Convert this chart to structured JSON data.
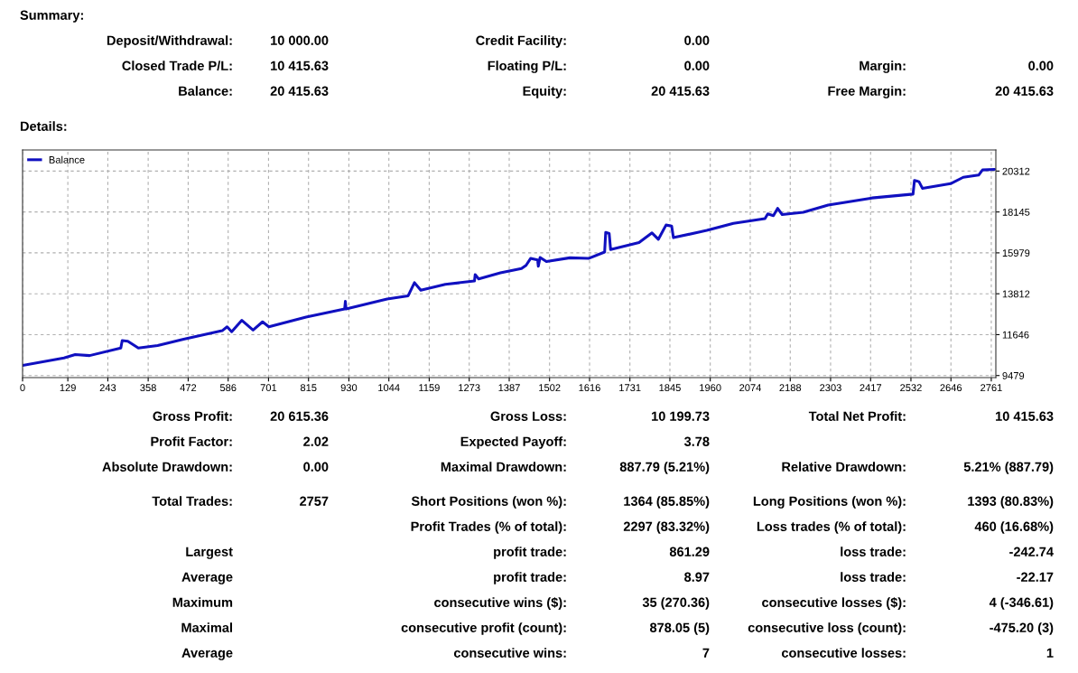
{
  "chart_data": [
    {
      "type": "other",
      "title": "Summary:",
      "annotations": [
        "Deposit/Withdrawal:",
        "10 000.00",
        "Credit Facility:",
        "0.00",
        null,
        null,
        "Closed Trade P/L:",
        "10 415.63",
        "Floating P/L:",
        "0.00",
        "Margin:",
        "0.00",
        "Balance:",
        "20 415.63",
        "Equity:",
        "20 415.63",
        "Free Margin:",
        "20 415.63"
      ]
    },
    {
      "type": "line",
      "title": "Details:",
      "legend": "top left",
      "grid": true,
      "xlim": [
        0,
        2774
      ],
      "xticks": [
        0,
        129,
        243,
        358,
        472,
        586,
        701,
        815,
        930,
        1044,
        1159,
        1273,
        1387,
        1502,
        1616,
        1731,
        1845,
        1960,
        2074,
        2188,
        2303,
        2417,
        2532,
        2646,
        2761
      ],
      "ylim": [
        9370,
        21430
      ],
      "yticks": [
        9479,
        11646,
        13812,
        15979,
        18145,
        20312
      ],
      "series": [
        {
          "name": "Balance",
          "color": "#1010c0",
          "x": [
            0,
            118,
            150,
            191,
            280,
            284,
            300,
            330,
            385,
            459,
            569,
            583,
            596,
            625,
            657,
            684,
            702,
            808,
            918,
            920,
            922,
            1039,
            1099,
            1117,
            1135,
            1205,
            1288,
            1290,
            1300,
            1362,
            1422,
            1435,
            1448,
            1468,
            1470,
            1475,
            1493,
            1560,
            1613,
            1659,
            1662,
            1672,
            1676,
            1757,
            1794,
            1812,
            1834,
            1850,
            1855,
            1950,
            2026,
            2116,
            2124,
            2140,
            2152,
            2165,
            2225,
            2296,
            2421,
            2538,
            2542,
            2555,
            2565,
            2645,
            2681,
            2725,
            2736,
            2770
          ],
          "values": [
            10017,
            10415,
            10589,
            10536,
            10938,
            11335,
            11300,
            10938,
            11064,
            11403,
            11854,
            12062,
            11801,
            12407,
            11888,
            12324,
            12062,
            12581,
            13012,
            13410,
            13012,
            13536,
            13706,
            14399,
            14001,
            14311,
            14486,
            14830,
            14600,
            14917,
            15145,
            15315,
            15683,
            15600,
            15266,
            15737,
            15523,
            15717,
            15683,
            16022,
            17065,
            17000,
            16153,
            16527,
            17036,
            16696,
            17452,
            17400,
            16783,
            17166,
            17540,
            17791,
            18043,
            17950,
            18334,
            18010,
            18126,
            18514,
            18887,
            19090,
            19813,
            19750,
            19391,
            19643,
            19982,
            20099,
            20370,
            20404
          ]
        }
      ]
    },
    {
      "type": "other",
      "annotations": [
        "Gross Profit:",
        "20 615.36",
        "Gross Loss:",
        "10 199.73",
        "Total Net Profit:",
        "10 415.63",
        "Profit Factor:",
        "2.02",
        "Expected Payoff:",
        "3.78",
        null,
        null,
        "Absolute Drawdown:",
        "0.00",
        "Maximal Drawdown:",
        "887.79 (5.21%)",
        "Relative Drawdown:",
        "5.21% (887.79)",
        "Total Trades:",
        "2757",
        "Short Positions (won %):",
        "1364 (85.85%)",
        "Long Positions (won %):",
        "1393 (80.83%)",
        null,
        null,
        "Profit Trades (% of total):",
        "2297 (83.32%)",
        "Loss trades (% of total):",
        "460 (16.68%)",
        "Largest",
        null,
        "profit trade:",
        "861.29",
        "loss trade:",
        "-242.74",
        "Average",
        null,
        "profit trade:",
        "8.97",
        "loss trade:",
        "-22.17",
        "Maximum",
        null,
        "consecutive wins ($):",
        "35 (270.36)",
        "consecutive losses ($):",
        "4 (-346.61)",
        "Maximal",
        null,
        "consecutive profit (count):",
        "878.05 (5)",
        "consecutive loss (count):",
        "-475.20 (3)",
        "Average",
        null,
        "consecutive wins:",
        "7",
        "consecutive losses:",
        "1"
      ]
    }
  ]
}
